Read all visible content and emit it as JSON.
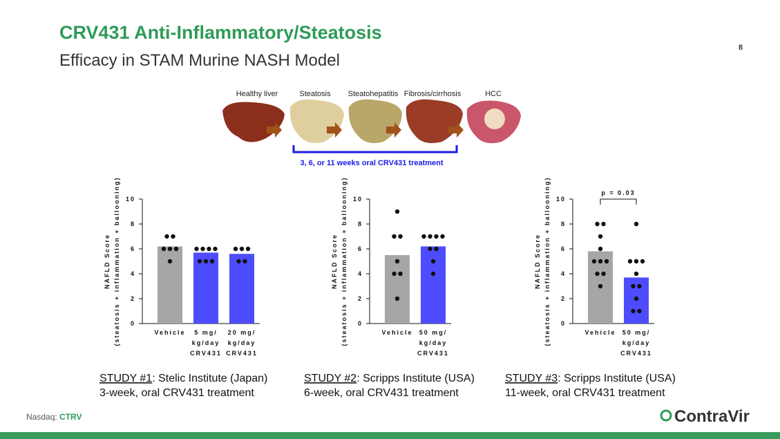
{
  "header": {
    "title": "CRV431 Anti-Inflammatory/Steatosis",
    "subtitle": "Efficacy in STAM Murine NASH Model",
    "page_number": "8"
  },
  "diagram": {
    "stages": [
      "Healthy liver",
      "Steatosis",
      "Steatohepatitis",
      "Fibrosis/cirrhosis",
      "HCC"
    ],
    "treatment": "3, 6, or 11 weeks oral CRV431 treatment"
  },
  "chart_data": [
    {
      "type": "bar",
      "ylabel": "NAFLD Score",
      "ylabel_sub": "(steatosis + inflammation + ballooning)",
      "categories": [
        "Vehicle",
        "5 mg/\nkg/day\nCRV431",
        "20 mg/\nkg/day\nCRV431"
      ],
      "values": [
        6.2,
        5.7,
        5.6
      ],
      "colors": [
        "#a6a6a6",
        "#4d4dff",
        "#4d4dff"
      ],
      "points": [
        [
          7,
          7,
          6,
          6,
          6,
          5
        ],
        [
          6,
          6,
          6,
          6,
          5,
          5,
          5
        ],
        [
          6,
          6,
          6,
          5,
          5
        ]
      ],
      "ylim": [
        0,
        10
      ],
      "yticks": [
        0,
        2,
        4,
        6,
        8,
        10
      ]
    },
    {
      "type": "bar",
      "ylabel": "NAFLD Score",
      "ylabel_sub": "(steatosis + inflammation + ballooning)",
      "categories": [
        "Vehicle",
        "50 mg/\nkg/day\nCRV431"
      ],
      "values": [
        5.5,
        6.2
      ],
      "colors": [
        "#a6a6a6",
        "#4d4dff"
      ],
      "points": [
        [
          9,
          7,
          7,
          5,
          4,
          4,
          2
        ],
        [
          7,
          7,
          7,
          7,
          6,
          6,
          5,
          4
        ]
      ],
      "ylim": [
        0,
        10
      ],
      "yticks": [
        0,
        2,
        4,
        6,
        8,
        10
      ]
    },
    {
      "type": "bar",
      "ylabel": "NAFLD Score",
      "ylabel_sub": "(steatosis + inflammation + ballooning)",
      "categories": [
        "Vehicle",
        "50 mg/\nkg/day\nCRV431"
      ],
      "values": [
        5.8,
        3.7
      ],
      "colors": [
        "#a6a6a6",
        "#4d4dff"
      ],
      "points": [
        [
          8,
          8,
          7,
          6,
          5,
          5,
          5,
          4,
          4,
          3
        ],
        [
          8,
          5,
          5,
          5,
          4,
          3,
          3,
          2,
          1,
          1
        ]
      ],
      "ylim": [
        0,
        10
      ],
      "yticks": [
        0,
        2,
        4,
        6,
        8,
        10
      ],
      "annotation": "p = 0.03"
    }
  ],
  "studies": [
    {
      "label": "STUDY #1",
      "text": ": Stelic Institute (Japan)",
      "detail": "3-week, oral CRV431 treatment"
    },
    {
      "label": "STUDY #2",
      "text": ": Scripps Institute (USA)",
      "detail": "6-week, oral CRV431 treatment"
    },
    {
      "label": "STUDY #3",
      "text": ": Scripps Institute (USA)",
      "detail": "11-week, oral CRV431 treatment"
    }
  ],
  "footer": {
    "exchange": "Nasdaq: ",
    "ticker": "CTRV",
    "logo": "ContraVir"
  }
}
